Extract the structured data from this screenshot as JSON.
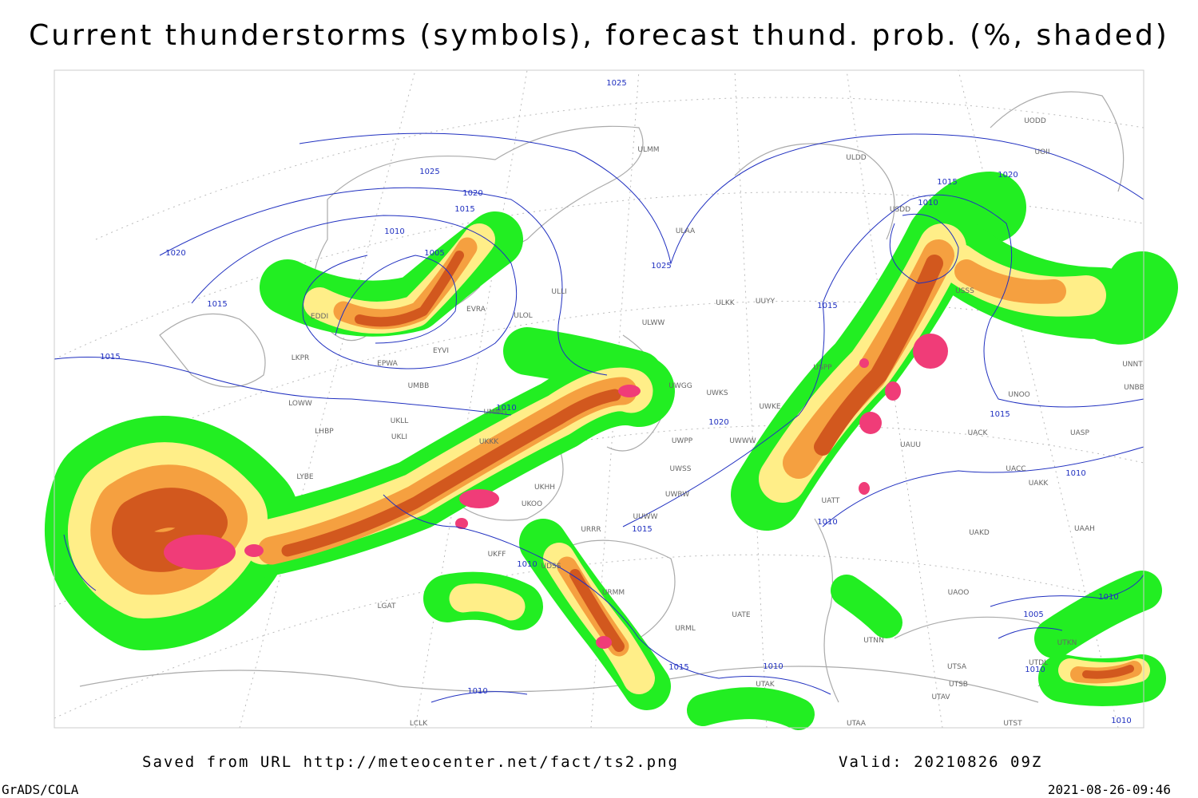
{
  "header": {
    "title": "Current thunderstorms (symbols), forecast thund. prob. (%, shaded)"
  },
  "footer": {
    "source": "Saved from URL http://meteocenter.net/fact/ts2.png",
    "valid": "Valid: 20210826 09Z",
    "software": "GrADS/COLA",
    "timestamp": "2021-08-26-09:46"
  },
  "isobar_labels": [
    "1025",
    "1025",
    "1020",
    "1015",
    "1010",
    "1005",
    "1020",
    "1015",
    "1015",
    "1010",
    "1025",
    "1015",
    "1010",
    "1020",
    "1015",
    "1015",
    "1020",
    "1010",
    "1010",
    "1010",
    "1015",
    "1010",
    "1005",
    "1010",
    "1010",
    "1015",
    "1010",
    "1010"
  ],
  "stations": [
    "UODD",
    "UOII",
    "ULDD",
    "ULMM",
    "ULAA",
    "USDD",
    "ULLI",
    "ULOL",
    "ULWW",
    "ULKK",
    "UUYY",
    "EVRA",
    "EYVI",
    "UMMG",
    "EDDI",
    "EPWA",
    "LKPR",
    "UMBB",
    "LOWW",
    "UKLL",
    "UKLI",
    "LHBP",
    "LYBE",
    "UKKK",
    "UKHH",
    "UUWW",
    "UWGG",
    "UWKS",
    "UWKE",
    "UWPP",
    "UWWW",
    "UWSS",
    "UWRW",
    "USPP",
    "UATT",
    "UAUU",
    "UACK",
    "UACC",
    "UAKK",
    "UASP",
    "UAKD",
    "UAAH",
    "UAOO",
    "UTNN",
    "UTAK",
    "UTSA",
    "UTSB",
    "UTAV",
    "UTAA",
    "UNOO",
    "UNBB",
    "UNNT",
    "URRR",
    "URMM",
    "URML",
    "UATE",
    "LGAT",
    "LCLK",
    "UKOO",
    "UKFF",
    "UDSS",
    "UTDL",
    "UTKN",
    "UTST",
    "USSS"
  ]
}
